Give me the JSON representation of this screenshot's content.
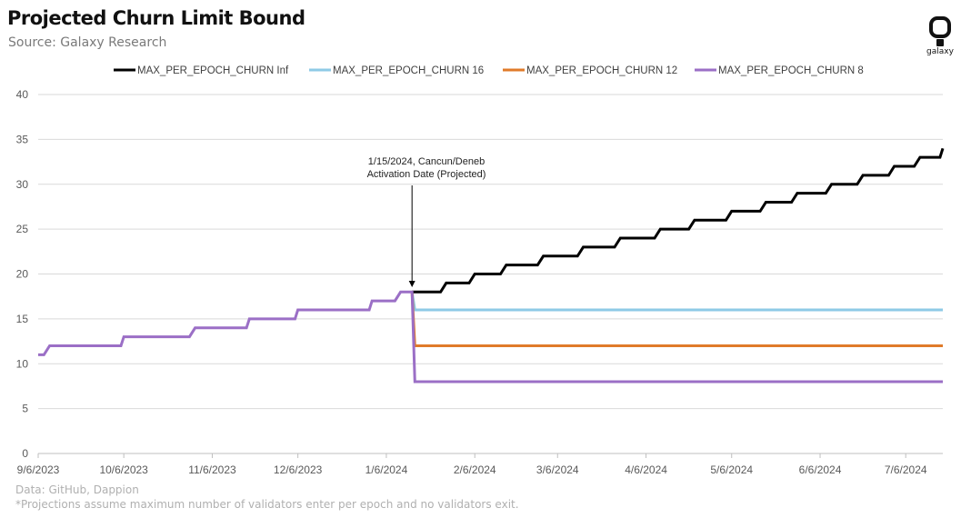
{
  "header": {
    "title": "Projected Churn Limit Bound",
    "subtitle": "Source: Galaxy Research",
    "logo_text": "galaxy"
  },
  "footer": {
    "line1": "Data: GitHub, Dappion",
    "line2": "*Projections assume maximum number of validators enter per epoch and no validators exit."
  },
  "annotation": {
    "line1": "1/15/2024, Cancun/Deneb",
    "line2": "Activation Date (Projected)",
    "date": "2024-01-15"
  },
  "chart_data": {
    "type": "line",
    "x_tick_labels": [
      "9/6/2023",
      "10/6/2023",
      "11/6/2023",
      "12/6/2023",
      "1/6/2024",
      "2/6/2024",
      "3/6/2024",
      "4/6/2024",
      "5/6/2024",
      "6/6/2024",
      "7/6/2024"
    ],
    "x_tick_dates": [
      "2023-09-06",
      "2023-10-06",
      "2023-11-06",
      "2023-12-06",
      "2024-01-06",
      "2024-02-06",
      "2024-03-06",
      "2024-04-06",
      "2024-05-06",
      "2024-06-06",
      "2024-07-06"
    ],
    "xlim": [
      "2023-09-06",
      "2024-07-19"
    ],
    "ylim": [
      0,
      40
    ],
    "y_ticks": [
      0,
      5,
      10,
      15,
      20,
      25,
      30,
      35,
      40
    ],
    "grid": "horizontal",
    "legend_position": "top",
    "series": [
      {
        "name": "MAX_PER_EPOCH_CHURN Inf",
        "color": "#000000",
        "points": [
          [
            "2024-01-15",
            18
          ],
          [
            "2024-01-25",
            18
          ],
          [
            "2024-01-27",
            19
          ],
          [
            "2024-02-04",
            19
          ],
          [
            "2024-02-06",
            20
          ],
          [
            "2024-02-15",
            20
          ],
          [
            "2024-02-17",
            21
          ],
          [
            "2024-02-28",
            21
          ],
          [
            "2024-03-01",
            22
          ],
          [
            "2024-03-13",
            22
          ],
          [
            "2024-03-15",
            23
          ],
          [
            "2024-03-26",
            23
          ],
          [
            "2024-03-28",
            24
          ],
          [
            "2024-04-09",
            24
          ],
          [
            "2024-04-11",
            25
          ],
          [
            "2024-04-21",
            25
          ],
          [
            "2024-04-23",
            26
          ],
          [
            "2024-05-04",
            26
          ],
          [
            "2024-05-06",
            27
          ],
          [
            "2024-05-16",
            27
          ],
          [
            "2024-05-18",
            28
          ],
          [
            "2024-05-27",
            28
          ],
          [
            "2024-05-29",
            29
          ],
          [
            "2024-06-08",
            29
          ],
          [
            "2024-06-10",
            30
          ],
          [
            "2024-06-19",
            30
          ],
          [
            "2024-06-21",
            31
          ],
          [
            "2024-06-30",
            31
          ],
          [
            "2024-07-02",
            32
          ],
          [
            "2024-07-09",
            32
          ],
          [
            "2024-07-11",
            33
          ],
          [
            "2024-07-18",
            33
          ],
          [
            "2024-07-19",
            34
          ]
        ]
      },
      {
        "name": "MAX_PER_EPOCH_CHURN  16",
        "color": "#8ecae6",
        "points": [
          [
            "2024-01-15",
            18
          ],
          [
            "2024-01-16",
            16
          ],
          [
            "2024-07-19",
            16
          ]
        ]
      },
      {
        "name": "MAX_PER_EPOCH_CHURN 12",
        "color": "#e07b2a",
        "points": [
          [
            "2024-01-15",
            18
          ],
          [
            "2024-01-16",
            12
          ],
          [
            "2024-07-19",
            12
          ]
        ]
      },
      {
        "name": "MAX_PER_EPOCH_CHURN 8",
        "color": "#9b6fc6",
        "points": [
          [
            "2023-09-06",
            11
          ],
          [
            "2023-09-08",
            11
          ],
          [
            "2023-09-10",
            12
          ],
          [
            "2023-10-05",
            12
          ],
          [
            "2023-10-06",
            13
          ],
          [
            "2023-10-29",
            13
          ],
          [
            "2023-10-31",
            14
          ],
          [
            "2023-11-18",
            14
          ],
          [
            "2023-11-19",
            15
          ],
          [
            "2023-12-05",
            15
          ],
          [
            "2023-12-06",
            16
          ],
          [
            "2023-12-31",
            16
          ],
          [
            "2024-01-01",
            17
          ],
          [
            "2024-01-09",
            17
          ],
          [
            "2024-01-11",
            18
          ],
          [
            "2024-01-15",
            18
          ],
          [
            "2024-01-16",
            8
          ],
          [
            "2024-07-19",
            8
          ]
        ]
      }
    ]
  }
}
